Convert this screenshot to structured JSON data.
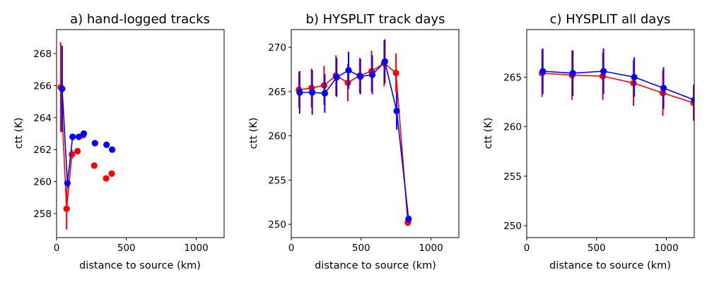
{
  "chart_data": [
    {
      "type": "line",
      "title": "a) hand-logged tracks",
      "xlabel": "distance to source (km)",
      "ylabel": "ctt (K)",
      "xlim": [
        0,
        1200
      ],
      "ylim": [
        256.5,
        269.5
      ],
      "xticks": [
        0,
        500,
        1000
      ],
      "xtick_labels": [
        "0",
        "500",
        "1000"
      ],
      "yticks": [
        258,
        260,
        262,
        264,
        266,
        268
      ],
      "ytick_labels": [
        "258",
        "260",
        "262",
        "264",
        "266",
        "268"
      ],
      "grid": false,
      "series": [
        {
          "name": "red",
          "color": "#ff0000",
          "x": [
            30,
            72,
            110,
            150,
            190,
            270,
            355,
            395
          ],
          "y": [
            265.9,
            258.3,
            261.7,
            261.9,
            262.9,
            261.0,
            260.2,
            260.5
          ],
          "err": [
            2.8,
            1.3,
            0.3,
            null,
            null,
            null,
            null,
            null
          ],
          "line_points": 3
        },
        {
          "name": "blue",
          "color": "#0000ff",
          "x": [
            40,
            78,
            115,
            160,
            195,
            275,
            358,
            398
          ],
          "y": [
            265.8,
            259.9,
            262.8,
            262.8,
            263.0,
            262.4,
            262.3,
            262.0
          ],
          "err": [
            2.7,
            0.3,
            null,
            null,
            null,
            null,
            null,
            null
          ],
          "line_points": 3
        }
      ]
    },
    {
      "type": "line",
      "title": "b) HYSPLIT track days",
      "xlabel": "distance to source (km)",
      "ylabel": "ctt (K)",
      "xlim": [
        0,
        1200
      ],
      "ylim": [
        248.5,
        272
      ],
      "xticks": [
        0,
        500,
        1000
      ],
      "xtick_labels": [
        "0",
        "500",
        "1000"
      ],
      "yticks": [
        250,
        255,
        260,
        265,
        270
      ],
      "ytick_labels": [
        "250",
        "255",
        "260",
        "265",
        "270"
      ],
      "grid": false,
      "series": [
        {
          "name": "red",
          "color": "#ff0000",
          "x": [
            55,
            145,
            235,
            320,
            405,
            490,
            575,
            665,
            750,
            835
          ],
          "y": [
            265.2,
            265.4,
            265.7,
            266.8,
            266.0,
            266.8,
            267.3,
            268.2,
            267.1,
            250.2
          ],
          "err": [
            2.0,
            2.2,
            2.2,
            2.3,
            2.1,
            2.0,
            2.3,
            2.6,
            2.2,
            0.4
          ]
        },
        {
          "name": "blue",
          "color": "#0000ff",
          "x": [
            60,
            150,
            240,
            325,
            410,
            495,
            580,
            670,
            755,
            840
          ],
          "y": [
            264.9,
            264.9,
            264.8,
            266.6,
            267.4,
            266.7,
            266.9,
            268.4,
            262.8,
            250.6
          ],
          "err": [
            2.4,
            2.5,
            2.2,
            2.2,
            2.1,
            2.0,
            2.2,
            2.5,
            2.1,
            0.4
          ]
        }
      ]
    },
    {
      "type": "line",
      "title": "c) HYSPLIT all days",
      "xlabel": "distance to source (km)",
      "ylabel": "ctt (K)",
      "xlim": [
        0,
        1200
      ],
      "ylim": [
        248.8,
        269.8
      ],
      "xticks": [
        0,
        500,
        1000
      ],
      "xtick_labels": [
        "0",
        "500",
        "1000"
      ],
      "yticks": [
        250,
        255,
        260,
        265
      ],
      "ytick_labels": [
        "250",
        "255",
        "260",
        "265"
      ],
      "grid": false,
      "series": [
        {
          "name": "red",
          "color": "#ff0000",
          "x": [
            110,
            325,
            545,
            765,
            975,
            1195
          ],
          "y": [
            265.4,
            265.2,
            265.1,
            264.4,
            263.4,
            262.4
          ],
          "err": [
            2.4,
            2.5,
            2.4,
            2.3,
            2.3,
            1.8
          ]
        },
        {
          "name": "blue",
          "color": "#0000ff",
          "x": [
            115,
            330,
            550,
            770,
            980,
            1200
          ],
          "y": [
            265.6,
            265.4,
            265.6,
            265.0,
            263.9,
            262.7
          ],
          "err": [
            2.3,
            2.3,
            2.3,
            2.0,
            2.1,
            1.6
          ]
        }
      ]
    }
  ]
}
